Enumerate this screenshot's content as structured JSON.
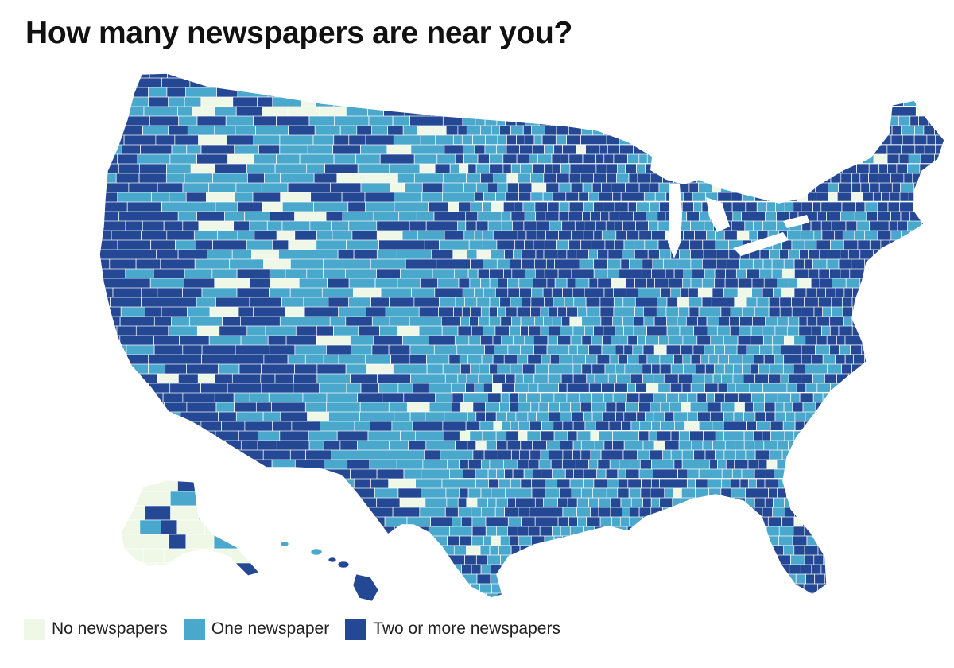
{
  "title": "How many newspapers are near you?",
  "colors": {
    "none": "#eff8e7",
    "one": "#4aa8cd",
    "two_plus": "#254894",
    "county_border": "#ffffff"
  },
  "legend": [
    {
      "key": "none",
      "label": "No newspapers"
    },
    {
      "key": "one",
      "label": "One newspaper"
    },
    {
      "key": "two_plus",
      "label": "Two or more newspapers"
    }
  ],
  "map": {
    "type": "choropleth",
    "unit": "county",
    "region": "United States (contiguous states, Alaska, Hawaii)",
    "categories": [
      "No newspapers",
      "One newspaper",
      "Two or more newspapers"
    ],
    "regions": [
      {
        "name": "Pacific Northwest",
        "category": "two_plus"
      },
      {
        "name": "California coast",
        "category": "two_plus"
      },
      {
        "name": "Great Basin",
        "category": "one"
      },
      {
        "name": "Southwest",
        "category": "two_plus"
      },
      {
        "name": "Northern Rockies",
        "category": "one"
      },
      {
        "name": "Northern Plains",
        "category": "one"
      },
      {
        "name": "Upper Midwest",
        "category": "two_plus"
      },
      {
        "name": "Texas",
        "category": "one"
      },
      {
        "name": "Gulf Coast",
        "category": "two_plus"
      },
      {
        "name": "Great Lakes",
        "category": "two_plus"
      },
      {
        "name": "Appalachia",
        "category": "one"
      },
      {
        "name": "Southeast",
        "category": "one"
      },
      {
        "name": "Northeast",
        "category": "two_plus"
      },
      {
        "name": "Florida",
        "category": "two_plus"
      },
      {
        "name": "Alaska",
        "category": "none"
      },
      {
        "name": "Hawaii",
        "category": "two_plus"
      }
    ]
  }
}
